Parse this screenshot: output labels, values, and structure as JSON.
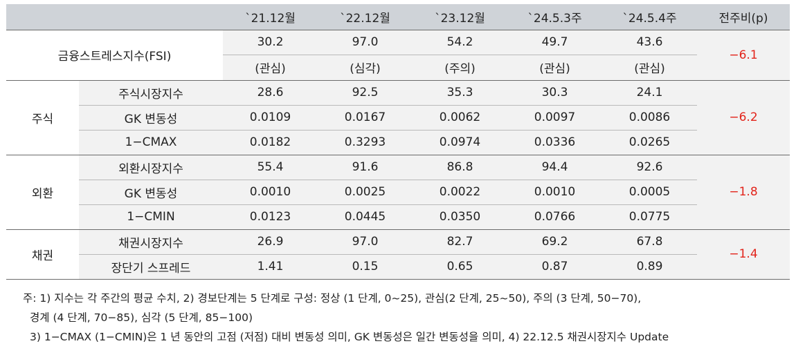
{
  "header": {
    "blank": "",
    "cols": [
      "`21.12월",
      "`22.12월",
      "`23.12월",
      "`24.5.3주",
      "`24.5.4주",
      "전주비(p)"
    ]
  },
  "fsi": {
    "label": "금융스트레스지수(FSI)",
    "values": [
      "30.2",
      "97.0",
      "54.2",
      "49.7",
      "43.6"
    ],
    "levels": [
      "(관심)",
      "(심각)",
      "(주의)",
      "(관심)",
      "(관심)"
    ],
    "change": "−6.1"
  },
  "stock": {
    "group": "주식",
    "rows": [
      {
        "label": "주식시장지수",
        "values": [
          "28.6",
          "92.5",
          "35.3",
          "30.3",
          "24.1"
        ]
      },
      {
        "label": "GK 변동성",
        "values": [
          "0.0109",
          "0.0167",
          "0.0062",
          "0.0097",
          "0.0086"
        ]
      },
      {
        "label": "1−CMAX",
        "values": [
          "0.0182",
          "0.3293",
          "0.0974",
          "0.0336",
          "0.0265"
        ]
      }
    ],
    "change": "−6.2"
  },
  "fx": {
    "group": "외환",
    "rows": [
      {
        "label": "외환시장지수",
        "values": [
          "55.4",
          "91.6",
          "86.8",
          "94.4",
          "92.6"
        ]
      },
      {
        "label": "GK 변동성",
        "values": [
          "0.0010",
          "0.0025",
          "0.0022",
          "0.0010",
          "0.0005"
        ]
      },
      {
        "label": "1−CMIN",
        "values": [
          "0.0123",
          "0.0445",
          "0.0350",
          "0.0766",
          "0.0775"
        ]
      }
    ],
    "change": "−1.8"
  },
  "bond": {
    "group": "채권",
    "rows": [
      {
        "label": "채권시장지수",
        "values": [
          "26.9",
          "97.0",
          "82.7",
          "69.2",
          "67.8"
        ]
      },
      {
        "label": "장단기 스프레드",
        "values": [
          "1.41",
          "0.15",
          "0.65",
          "0.87",
          "0.89"
        ]
      }
    ],
    "change": "−1.4"
  },
  "notes": {
    "line1": "주: 1) 지수는 각 주간의 평균 수치, 2) 경보단계는 5 단계로 구성: 정상 (1 단계, 0~25), 관심(2 단계, 25~50), 주의 (3 단계, 50−70),",
    "line2": "경계 (4 단계, 70−85), 심각 (5 단계, 85−100)",
    "line3": "3) 1−CMAX (1−CMIN)은 1 년 동안의 고점 (저점) 대비 변동성 의미, GK 변동성은 일간 변동성을 의미, 4) 22.12.5 채권시장지수 Update"
  }
}
